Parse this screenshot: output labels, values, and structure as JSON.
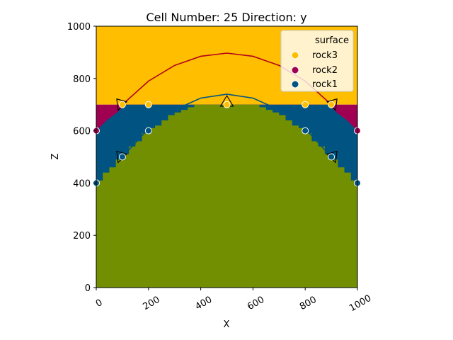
{
  "chart_data": {
    "type": "scatter",
    "title": "Cell Number: 25 Direction: y",
    "xlabel": "X",
    "ylabel": "Z",
    "xlim": [
      0,
      1000
    ],
    "ylim": [
      0,
      1000
    ],
    "xticks": [
      "0",
      "200",
      "400",
      "600",
      "800",
      "1000"
    ],
    "yticks": [
      "0",
      "200",
      "400",
      "600",
      "800",
      "1000"
    ],
    "grid": false,
    "legend": {
      "title": "surface",
      "placement": "top-right",
      "entries": [
        "rock3",
        "rock2",
        "rock1"
      ]
    },
    "colors": {
      "rock3": "#ffbe00",
      "rock2": "#9f0052",
      "rock1": "#015482",
      "basement": "#728f02",
      "rock3_line": "#b2001e",
      "rock1_line": "#015482",
      "orientation_marker": "#000000"
    },
    "layer_tops": {
      "rock3_fill_top": 1000,
      "rock2_fill_top": 700,
      "rock1_fill_top": 700,
      "basement_profile": [
        [
          0,
          400
        ],
        [
          100,
          500
        ],
        [
          200,
          600
        ],
        [
          300,
          665
        ],
        [
          350,
          690
        ],
        [
          400,
          700
        ],
        [
          500,
          700
        ],
        [
          600,
          700
        ],
        [
          650,
          690
        ],
        [
          700,
          665
        ],
        [
          800,
          600
        ],
        [
          900,
          500
        ],
        [
          1000,
          400
        ]
      ],
      "rock2_lower_profile": [
        [
          0,
          600
        ],
        [
          40,
          640
        ],
        [
          80,
          670
        ],
        [
          110,
          700
        ],
        [
          890,
          700
        ],
        [
          920,
          670
        ],
        [
          960,
          640
        ],
        [
          1000,
          600
        ]
      ]
    },
    "series": [
      {
        "name": "rock3",
        "points": [
          [
            100,
            700
          ],
          [
            200,
            700
          ],
          [
            500,
            700
          ],
          [
            800,
            700
          ],
          [
            900,
            700
          ]
        ],
        "curve": [
          [
            100,
            700
          ],
          [
            200,
            790
          ],
          [
            300,
            850
          ],
          [
            400,
            885
          ],
          [
            500,
            897
          ],
          [
            600,
            885
          ],
          [
            700,
            850
          ],
          [
            800,
            790
          ],
          [
            900,
            700
          ]
        ]
      },
      {
        "name": "rock2",
        "points": [
          [
            0,
            600
          ],
          [
            1000,
            600
          ]
        ]
      },
      {
        "name": "rock1",
        "points": [
          [
            0,
            400
          ],
          [
            100,
            500
          ],
          [
            200,
            600
          ],
          [
            800,
            600
          ],
          [
            900,
            500
          ],
          [
            1000,
            400
          ]
        ],
        "curve": [
          [
            100,
            500
          ],
          [
            200,
            608
          ],
          [
            300,
            680
          ],
          [
            400,
            725
          ],
          [
            500,
            740
          ],
          [
            600,
            725
          ],
          [
            700,
            680
          ],
          [
            800,
            608
          ],
          [
            900,
            500
          ]
        ]
      }
    ],
    "orientations": [
      {
        "x": 100,
        "z": 700,
        "kind": "left"
      },
      {
        "x": 500,
        "z": 710,
        "kind": "up"
      },
      {
        "x": 900,
        "z": 700,
        "kind": "right"
      },
      {
        "x": 100,
        "z": 500,
        "kind": "left"
      },
      {
        "x": 900,
        "z": 500,
        "kind": "right"
      }
    ]
  }
}
